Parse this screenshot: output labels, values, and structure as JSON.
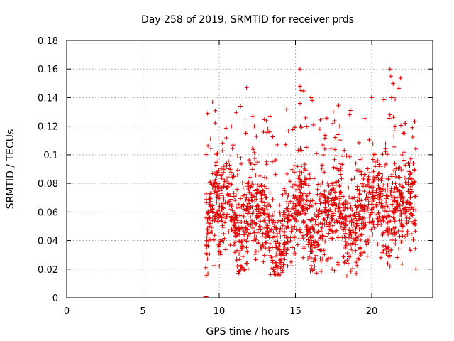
{
  "chart_data": {
    "type": "scatter",
    "title": "Day 258 of 2019, SRMTID for receiver prds",
    "xlabel": "GPS time / hours",
    "ylabel": "SRMTID / TECUs",
    "xlim": [
      0,
      24
    ],
    "ylim": [
      0,
      0.18
    ],
    "xticks": [
      0,
      5,
      10,
      15,
      20
    ],
    "xtick_labels": [
      "0",
      "5",
      "10",
      "15",
      "20"
    ],
    "yticks": [
      0,
      0.02,
      0.04,
      0.06,
      0.08,
      0.1,
      0.12,
      0.14,
      0.16,
      0.18
    ],
    "ytick_labels": [
      "0",
      "0.02",
      "0.04",
      "0.06",
      "0.08",
      "0.1",
      "0.12",
      "0.14",
      "0.16",
      "0.18"
    ],
    "grid": true,
    "marker": "+",
    "color": "#e00000",
    "series": [
      {
        "name": "prds",
        "x_range": [
          9.1,
          22.9
        ],
        "n_points": 1700,
        "seed": 258,
        "baseline_points": [
          [
            9.1,
            0.0
          ],
          [
            9.12,
            0.0
          ],
          [
            9.15,
            0.0
          ]
        ],
        "notable_points": [
          [
            15.3,
            0.16
          ],
          [
            21.2,
            0.16
          ],
          [
            21.25,
            0.155
          ],
          [
            11.8,
            0.147
          ],
          [
            15.3,
            0.148
          ],
          [
            15.35,
            0.145
          ],
          [
            21.4,
            0.15
          ],
          [
            21.45,
            0.149
          ],
          [
            16.0,
            0.14
          ],
          [
            11.4,
            0.134
          ],
          [
            21.3,
            0.14
          ],
          [
            16.1,
            0.138
          ],
          [
            18.6,
            0.131
          ],
          [
            18.55,
            0.128
          ],
          [
            15.3,
            0.136
          ],
          [
            11.7,
            0.125
          ],
          [
            21.2,
            0.128
          ],
          [
            17.9,
            0.12
          ],
          [
            10.8,
            0.12
          ],
          [
            12.3,
            0.12
          ],
          [
            13.3,
            0.116
          ],
          [
            22.2,
            0.122
          ],
          [
            16.6,
            0.118
          ],
          [
            14.2,
            0.022
          ],
          [
            14.0,
            0.016
          ],
          [
            13.6,
            0.018
          ],
          [
            13.8,
            0.02
          ],
          [
            11.9,
            0.02
          ],
          [
            17.4,
            0.02
          ],
          [
            17.8,
            0.023
          ],
          [
            10.1,
            0.03
          ],
          [
            20.6,
            0.028
          ],
          [
            21.2,
            0.022
          ],
          [
            22.5,
            0.034
          ],
          [
            22.55,
            0.033
          ],
          [
            12.9,
            0.025
          ],
          [
            15.5,
            0.028
          ],
          [
            16.9,
            0.03
          ]
        ]
      }
    ]
  }
}
